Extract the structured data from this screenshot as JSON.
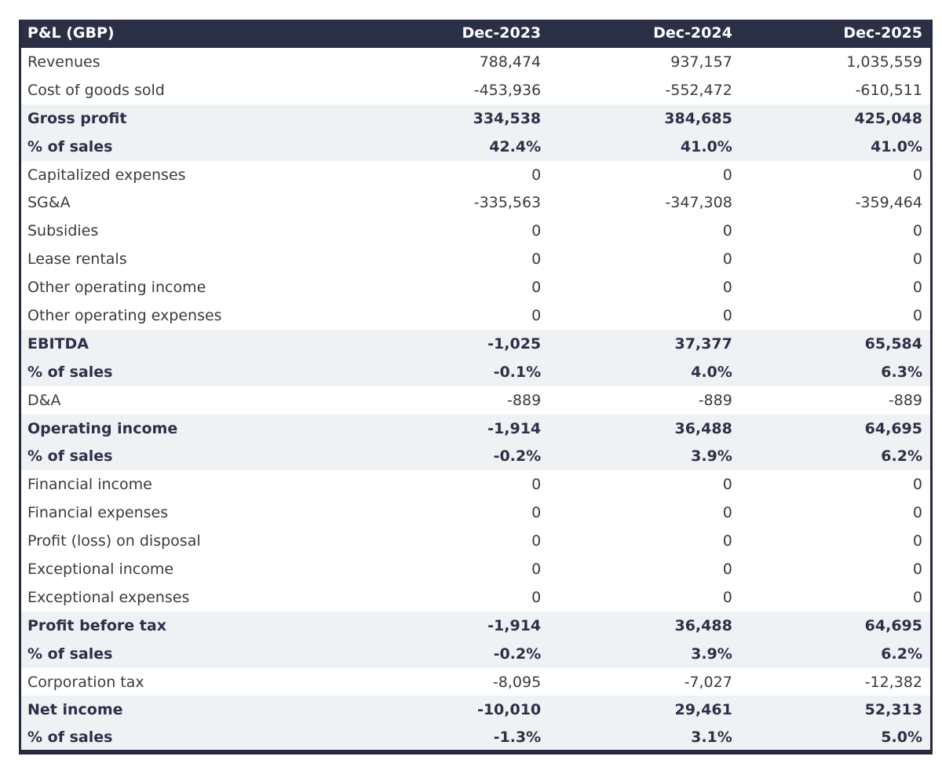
{
  "chart_data": {
    "type": "table",
    "title": "P&L (GBP)",
    "columns": [
      "Dec-2023",
      "Dec-2024",
      "Dec-2025"
    ],
    "rows": [
      {
        "label": "Revenues",
        "values": [
          "788,474",
          "937,157",
          "1,035,559"
        ],
        "emphasized": false
      },
      {
        "label": "Cost of goods sold",
        "values": [
          "-453,936",
          "-552,472",
          "-610,511"
        ],
        "emphasized": false
      },
      {
        "label": "Gross profit",
        "values": [
          "334,538",
          "384,685",
          "425,048"
        ],
        "emphasized": true
      },
      {
        "label": "% of sales",
        "values": [
          "42.4%",
          "41.0%",
          "41.0%"
        ],
        "emphasized": true
      },
      {
        "label": "Capitalized expenses",
        "values": [
          "0",
          "0",
          "0"
        ],
        "emphasized": false
      },
      {
        "label": "SG&A",
        "values": [
          "-335,563",
          "-347,308",
          "-359,464"
        ],
        "emphasized": false
      },
      {
        "label": "Subsidies",
        "values": [
          "0",
          "0",
          "0"
        ],
        "emphasized": false
      },
      {
        "label": "Lease rentals",
        "values": [
          "0",
          "0",
          "0"
        ],
        "emphasized": false
      },
      {
        "label": "Other operating income",
        "values": [
          "0",
          "0",
          "0"
        ],
        "emphasized": false
      },
      {
        "label": "Other operating expenses",
        "values": [
          "0",
          "0",
          "0"
        ],
        "emphasized": false
      },
      {
        "label": "EBITDA",
        "values": [
          "-1,025",
          "37,377",
          "65,584"
        ],
        "emphasized": true
      },
      {
        "label": "% of sales",
        "values": [
          "-0.1%",
          "4.0%",
          "6.3%"
        ],
        "emphasized": true
      },
      {
        "label": "D&A",
        "values": [
          "-889",
          "-889",
          "-889"
        ],
        "emphasized": false
      },
      {
        "label": "Operating income",
        "values": [
          "-1,914",
          "36,488",
          "64,695"
        ],
        "emphasized": true
      },
      {
        "label": "% of sales",
        "values": [
          "-0.2%",
          "3.9%",
          "6.2%"
        ],
        "emphasized": true
      },
      {
        "label": "Financial income",
        "values": [
          "0",
          "0",
          "0"
        ],
        "emphasized": false
      },
      {
        "label": "Financial expenses",
        "values": [
          "0",
          "0",
          "0"
        ],
        "emphasized": false
      },
      {
        "label": "Profit (loss) on disposal",
        "values": [
          "0",
          "0",
          "0"
        ],
        "emphasized": false
      },
      {
        "label": "Exceptional income",
        "values": [
          "0",
          "0",
          "0"
        ],
        "emphasized": false
      },
      {
        "label": "Exceptional expenses",
        "values": [
          "0",
          "0",
          "0"
        ],
        "emphasized": false
      },
      {
        "label": "Profit before tax",
        "values": [
          "-1,914",
          "36,488",
          "64,695"
        ],
        "emphasized": true
      },
      {
        "label": "% of sales",
        "values": [
          "-0.2%",
          "3.9%",
          "6.2%"
        ],
        "emphasized": true
      },
      {
        "label": "Corporation tax",
        "values": [
          "-8,095",
          "-7,027",
          "-12,382"
        ],
        "emphasized": false
      },
      {
        "label": "Net income",
        "values": [
          "-10,010",
          "29,461",
          "52,313"
        ],
        "emphasized": true
      },
      {
        "label": "% of sales",
        "values": [
          "-1.3%",
          "3.1%",
          "5.0%"
        ],
        "emphasized": true
      }
    ],
    "layout_hints": {
      "numeric_alignment": "right",
      "emphasized_rows_shaded": true,
      "grid": "off"
    }
  },
  "colors": {
    "header_bg": "#2c3047",
    "header_text": "#ffffff",
    "border": "#262a3f",
    "highlight_bg": "#eef2f4",
    "text_normal": "#3a3a3a",
    "text_emphasis": "#2c3047"
  }
}
